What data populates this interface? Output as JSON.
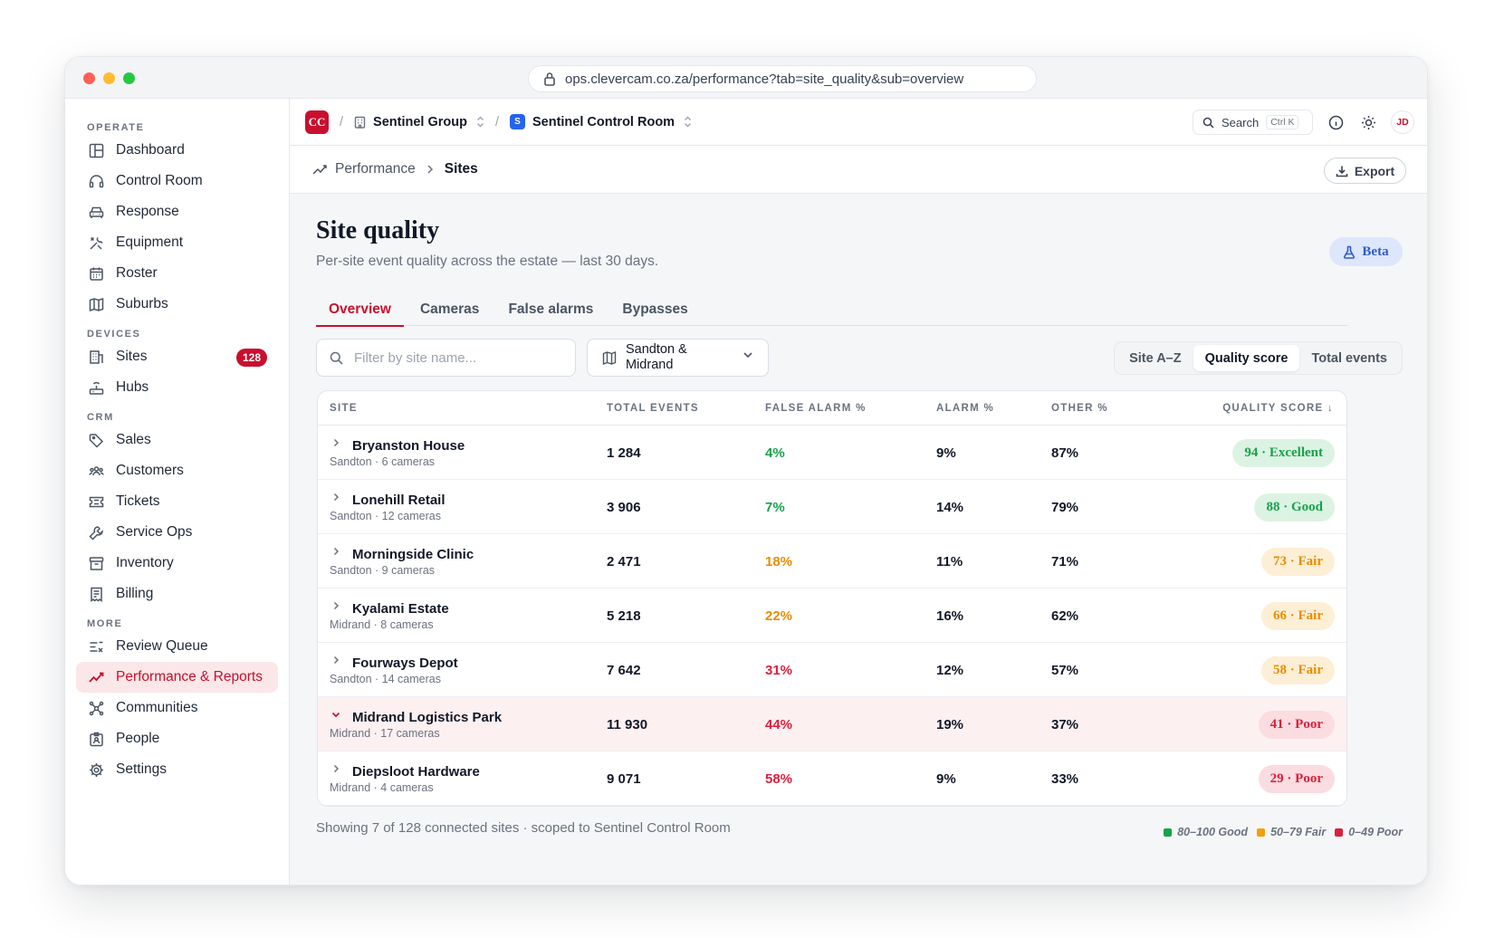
{
  "browser": {
    "url": "ops.clevercam.co.za/performance?tab=site_quality&sub=overview"
  },
  "sidebar": {
    "sections": [
      {
        "title": "OPERATE",
        "items": [
          {
            "label": "Dashboard",
            "icon": "layout-icon"
          },
          {
            "label": "Control Room",
            "icon": "headset-icon"
          },
          {
            "label": "Response",
            "icon": "car-icon"
          },
          {
            "label": "Equipment",
            "icon": "tools-icon"
          },
          {
            "label": "Roster",
            "icon": "calendar-icon"
          },
          {
            "label": "Suburbs",
            "icon": "map-icon"
          }
        ]
      },
      {
        "title": "DEVICES",
        "items": [
          {
            "label": "Sites",
            "icon": "building-icon",
            "badge": "128"
          },
          {
            "label": "Hubs",
            "icon": "router-icon"
          }
        ]
      },
      {
        "title": "CRM",
        "items": [
          {
            "label": "Sales",
            "icon": "tag-icon"
          },
          {
            "label": "Customers",
            "icon": "users-icon"
          },
          {
            "label": "Tickets",
            "icon": "ticket-icon"
          },
          {
            "label": "Service Ops",
            "icon": "wrench-icon"
          },
          {
            "label": "Inventory",
            "icon": "archive-icon"
          },
          {
            "label": "Billing",
            "icon": "receipt-icon"
          }
        ]
      },
      {
        "title": "MORE",
        "items": [
          {
            "label": "Review Queue",
            "icon": "list-check-icon"
          },
          {
            "label": "Performance & Reports",
            "icon": "trend-icon",
            "active": true
          },
          {
            "label": "Communities",
            "icon": "network-icon"
          },
          {
            "label": "People",
            "icon": "id-badge-icon"
          },
          {
            "label": "Settings",
            "icon": "gear-icon"
          }
        ]
      }
    ]
  },
  "topbar": {
    "logo": "CC",
    "org": "Sentinel Group",
    "workspace_logo": "S",
    "workspace": "Sentinel Control Room",
    "search_label": "Search",
    "search_shortcut": "Ctrl K",
    "avatar": "JD"
  },
  "subbar": {
    "section": "Performance",
    "page": "Sites",
    "export_label": "Export"
  },
  "page": {
    "title": "Site quality",
    "subtitle": "Per-site event quality across the estate — last 30 days.",
    "beta_label": "Beta"
  },
  "tabs": [
    {
      "label": "Overview",
      "active": true
    },
    {
      "label": "Cameras"
    },
    {
      "label": "False alarms"
    },
    {
      "label": "Bypasses"
    }
  ],
  "filters": {
    "search_placeholder": "Filter by site name...",
    "region_value": "Sandton & Midrand",
    "sort_options": [
      {
        "label": "Site A–Z"
      },
      {
        "label": "Quality score",
        "active": true
      },
      {
        "label": "Total events"
      }
    ]
  },
  "table": {
    "columns": {
      "site": "SITE",
      "total": "TOTAL EVENTS",
      "false_alarm": "FALSE ALARM %",
      "alarm": "ALARM %",
      "other": "OTHER %",
      "score": "QUALITY SCORE ↓"
    },
    "rows": [
      {
        "name": "Bryanston House",
        "meta": "Sandton · 6 cameras",
        "total": "1 284",
        "false_alarm": "4%",
        "fa_level": "good",
        "alarm": "9%",
        "other": "87%",
        "score": "94 · Excellent",
        "level": "good"
      },
      {
        "name": "Lonehill Retail",
        "meta": "Sandton · 12 cameras",
        "total": "3 906",
        "false_alarm": "7%",
        "fa_level": "good",
        "alarm": "14%",
        "other": "79%",
        "score": "88 · Good",
        "level": "good"
      },
      {
        "name": "Morningside Clinic",
        "meta": "Sandton · 9 cameras",
        "total": "2 471",
        "false_alarm": "18%",
        "fa_level": "fair",
        "alarm": "11%",
        "other": "71%",
        "score": "73 · Fair",
        "level": "fair"
      },
      {
        "name": "Kyalami Estate",
        "meta": "Midrand · 8 cameras",
        "total": "5 218",
        "false_alarm": "22%",
        "fa_level": "fair",
        "alarm": "16%",
        "other": "62%",
        "score": "66 · Fair",
        "level": "fair"
      },
      {
        "name": "Fourways Depot",
        "meta": "Sandton · 14 cameras",
        "total": "7 642",
        "false_alarm": "31%",
        "fa_level": "poor",
        "alarm": "12%",
        "other": "57%",
        "score": "58 · Fair",
        "level": "fair"
      },
      {
        "name": "Midrand Logistics Park",
        "meta": "Midrand · 17 cameras",
        "total": "11 930",
        "false_alarm": "44%",
        "fa_level": "poor",
        "alarm": "19%",
        "other": "37%",
        "score": "41 · Poor",
        "level": "poor",
        "expanded": true
      },
      {
        "name": "Diepsloot Hardware",
        "meta": "Midrand · 4 cameras",
        "total": "9 071",
        "false_alarm": "58%",
        "fa_level": "poor",
        "alarm": "9%",
        "other": "33%",
        "score": "29 · Poor",
        "level": "poor"
      }
    ]
  },
  "footer": {
    "summary": "Showing 7 of 128 connected sites · scoped to Sentinel Control Room",
    "legend": [
      {
        "label": "80–100 Good",
        "color": "#16a34a"
      },
      {
        "label": "50–79 Fair",
        "color": "#f59e0b"
      },
      {
        "label": "0–49 Poor",
        "color": "#dc1f3c"
      }
    ]
  }
}
